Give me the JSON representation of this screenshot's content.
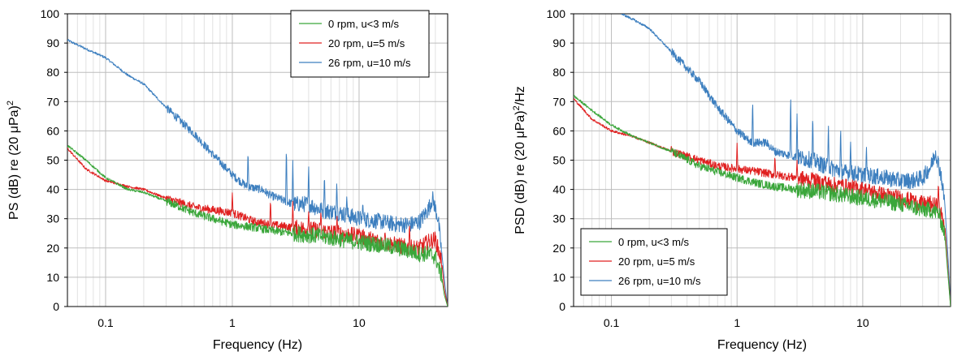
{
  "chart_data": [
    {
      "type": "line",
      "xscale": "log",
      "xlim": [
        0.05,
        50
      ],
      "ylim": [
        0,
        100
      ],
      "xticks": [
        {
          "v": 0.1,
          "label": "0.1"
        },
        {
          "v": 1,
          "label": "1"
        },
        {
          "v": 10,
          "label": "10"
        }
      ],
      "yticks": [
        0,
        10,
        20,
        30,
        40,
        50,
        60,
        70,
        80,
        90,
        100
      ],
      "xlabel": "Frequency (Hz)",
      "ylabel": "PS (dB) re (20 μPa)",
      "ylabel_sup": "2",
      "ylabel_suffix": "",
      "grid": true,
      "legend": "top-right",
      "series": [
        {
          "name": "0 rpm, u<3 m/s",
          "color": "#3aa63a",
          "x": [
            0.05,
            0.07,
            0.1,
            0.15,
            0.2,
            0.3,
            0.5,
            0.7,
            1,
            1.5,
            2,
            3,
            5,
            7,
            10,
            15,
            20,
            25,
            30,
            35,
            40,
            45,
            47,
            50
          ],
          "y": [
            55,
            50,
            44,
            40,
            39,
            36,
            32,
            30,
            28,
            27,
            26,
            25,
            24,
            23,
            22,
            21,
            20,
            19,
            18,
            18,
            17,
            10,
            4,
            0
          ],
          "peaks": []
        },
        {
          "name": "20 rpm, u=5 m/s",
          "color": "#e02020",
          "x": [
            0.05,
            0.07,
            0.1,
            0.15,
            0.2,
            0.3,
            0.5,
            0.7,
            1,
            1.5,
            2,
            3,
            5,
            7,
            10,
            15,
            20,
            25,
            30,
            35,
            40,
            45,
            47,
            50
          ],
          "y": [
            54,
            47,
            43,
            41,
            40,
            37,
            34,
            33,
            32,
            29,
            28,
            27,
            26,
            25,
            24,
            22,
            21,
            20,
            20,
            22,
            23,
            15,
            6,
            0
          ],
          "peaks": [
            {
              "x": 1,
              "y": 39
            },
            {
              "x": 2,
              "y": 37
            },
            {
              "x": 3,
              "y": 36
            },
            {
              "x": 4,
              "y": 33
            },
            {
              "x": 5,
              "y": 33
            },
            {
              "x": 6.7,
              "y": 31
            },
            {
              "x": 10,
              "y": 27
            },
            {
              "x": 16,
              "y": 26
            },
            {
              "x": 25,
              "y": 29
            }
          ]
        },
        {
          "name": "26 rpm, u=10 m/s",
          "color": "#3d7fbf",
          "x": [
            0.05,
            0.07,
            0.1,
            0.15,
            0.2,
            0.3,
            0.5,
            0.7,
            1,
            1.3,
            1.7,
            2,
            3,
            4,
            5,
            7,
            10,
            15,
            20,
            25,
            30,
            35,
            38,
            42,
            45,
            48,
            50
          ],
          "y": [
            91,
            88,
            85,
            79,
            76,
            68,
            59,
            52,
            45,
            41,
            40,
            38,
            35,
            35,
            33,
            32,
            30,
            29,
            28,
            28,
            29,
            33,
            37,
            30,
            18,
            6,
            0
          ],
          "peaks": [
            {
              "x": 1.33,
              "y": 54
            },
            {
              "x": 2.67,
              "y": 56
            },
            {
              "x": 3,
              "y": 50
            },
            {
              "x": 4,
              "y": 49
            },
            {
              "x": 5.33,
              "y": 46
            },
            {
              "x": 6.67,
              "y": 43
            },
            {
              "x": 8,
              "y": 38
            },
            {
              "x": 10.7,
              "y": 36
            }
          ]
        }
      ]
    },
    {
      "type": "line",
      "xscale": "log",
      "xlim": [
        0.05,
        50
      ],
      "ylim": [
        0,
        100
      ],
      "xticks": [
        {
          "v": 0.1,
          "label": "0.1"
        },
        {
          "v": 1,
          "label": "1"
        },
        {
          "v": 10,
          "label": "10"
        }
      ],
      "yticks": [
        0,
        10,
        20,
        30,
        40,
        50,
        60,
        70,
        80,
        90,
        100
      ],
      "xlabel": "Frequency (Hz)",
      "ylabel": "PSD (dB) re (20 μPa)",
      "ylabel_sup": "2",
      "ylabel_suffix": "/Hz",
      "grid": true,
      "legend": "bottom-left",
      "series": [
        {
          "name": "0 rpm, u<3 m/s",
          "color": "#3aa63a",
          "x": [
            0.05,
            0.07,
            0.1,
            0.15,
            0.2,
            0.3,
            0.5,
            0.7,
            1,
            1.5,
            2,
            3,
            5,
            7,
            10,
            15,
            20,
            25,
            30,
            35,
            40,
            45,
            47,
            50
          ],
          "y": [
            72,
            67,
            62,
            58,
            56,
            53,
            48,
            46,
            44,
            42,
            41,
            40,
            39,
            38,
            37,
            36,
            35,
            34,
            33,
            33,
            32,
            25,
            14,
            0
          ],
          "peaks": []
        },
        {
          "name": "20 rpm, u=5 m/s",
          "color": "#e02020",
          "x": [
            0.05,
            0.07,
            0.1,
            0.15,
            0.2,
            0.3,
            0.5,
            0.7,
            1,
            1.5,
            2,
            3,
            5,
            7,
            10,
            15,
            20,
            25,
            30,
            35,
            40,
            45,
            47,
            50
          ],
          "y": [
            71,
            64,
            60,
            58,
            56,
            53,
            50,
            48,
            47,
            46,
            45,
            44,
            42,
            41,
            40,
            38,
            37,
            36,
            35,
            35,
            34,
            28,
            16,
            0
          ],
          "peaks": [
            {
              "x": 0.3,
              "y": 55
            },
            {
              "x": 1,
              "y": 56
            },
            {
              "x": 2,
              "y": 52
            },
            {
              "x": 3,
              "y": 50
            },
            {
              "x": 4,
              "y": 46
            },
            {
              "x": 5,
              "y": 45
            },
            {
              "x": 6.7,
              "y": 43
            },
            {
              "x": 10,
              "y": 41
            },
            {
              "x": 25,
              "y": 38
            },
            {
              "x": 40,
              "y": 43
            }
          ]
        },
        {
          "name": "26 rpm, u=10 m/s",
          "color": "#3d7fbf",
          "x": [
            0.12,
            0.15,
            0.2,
            0.3,
            0.5,
            0.7,
            1,
            1.3,
            1.7,
            2,
            3,
            4,
            5,
            7,
            10,
            15,
            20,
            25,
            30,
            35,
            38,
            42,
            45,
            48,
            50
          ],
          "y": [
            100,
            98,
            95,
            87,
            77,
            68,
            60,
            56,
            56,
            53,
            51,
            50,
            48,
            46,
            45,
            44,
            43,
            43,
            44,
            48,
            53,
            45,
            35,
            15,
            0
          ],
          "peaks": [
            {
              "x": 1.33,
              "y": 71
            },
            {
              "x": 2.67,
              "y": 73
            },
            {
              "x": 3,
              "y": 66
            },
            {
              "x": 4,
              "y": 66
            },
            {
              "x": 5.33,
              "y": 63
            },
            {
              "x": 6.67,
              "y": 62
            },
            {
              "x": 8,
              "y": 57
            },
            {
              "x": 10.7,
              "y": 55
            }
          ]
        }
      ]
    }
  ]
}
